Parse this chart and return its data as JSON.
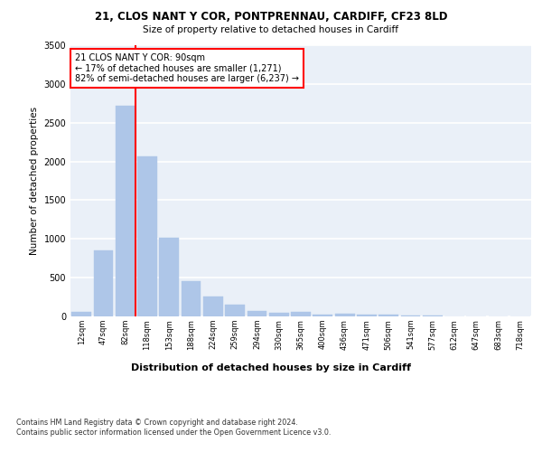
{
  "title_line1": "21, CLOS NANT Y COR, PONTPRENNAU, CARDIFF, CF23 8LD",
  "title_line2": "Size of property relative to detached houses in Cardiff",
  "xlabel": "Distribution of detached houses by size in Cardiff",
  "ylabel": "Number of detached properties",
  "bar_labels": [
    "12sqm",
    "47sqm",
    "82sqm",
    "118sqm",
    "153sqm",
    "188sqm",
    "224sqm",
    "259sqm",
    "294sqm",
    "330sqm",
    "365sqm",
    "400sqm",
    "436sqm",
    "471sqm",
    "506sqm",
    "541sqm",
    "577sqm",
    "612sqm",
    "647sqm",
    "683sqm",
    "718sqm"
  ],
  "bar_values": [
    55,
    850,
    2720,
    2070,
    1010,
    450,
    255,
    155,
    65,
    45,
    55,
    20,
    35,
    25,
    18,
    12,
    8,
    5,
    5,
    3,
    3
  ],
  "bar_color": "#aec6e8",
  "bar_edgecolor": "#aec6e8",
  "red_line_index": 2,
  "annotation_text": "21 CLOS NANT Y COR: 90sqm\n← 17% of detached houses are smaller (1,271)\n82% of semi-detached houses are larger (6,237) →",
  "annotation_box_color": "white",
  "annotation_border_color": "red",
  "ylim": [
    0,
    3500
  ],
  "yticks": [
    0,
    500,
    1000,
    1500,
    2000,
    2500,
    3000,
    3500
  ],
  "footer_line1": "Contains HM Land Registry data © Crown copyright and database right 2024.",
  "footer_line2": "Contains public sector information licensed under the Open Government Licence v3.0.",
  "background_color": "#eaf0f8",
  "grid_color": "white",
  "fig_bg_color": "white"
}
